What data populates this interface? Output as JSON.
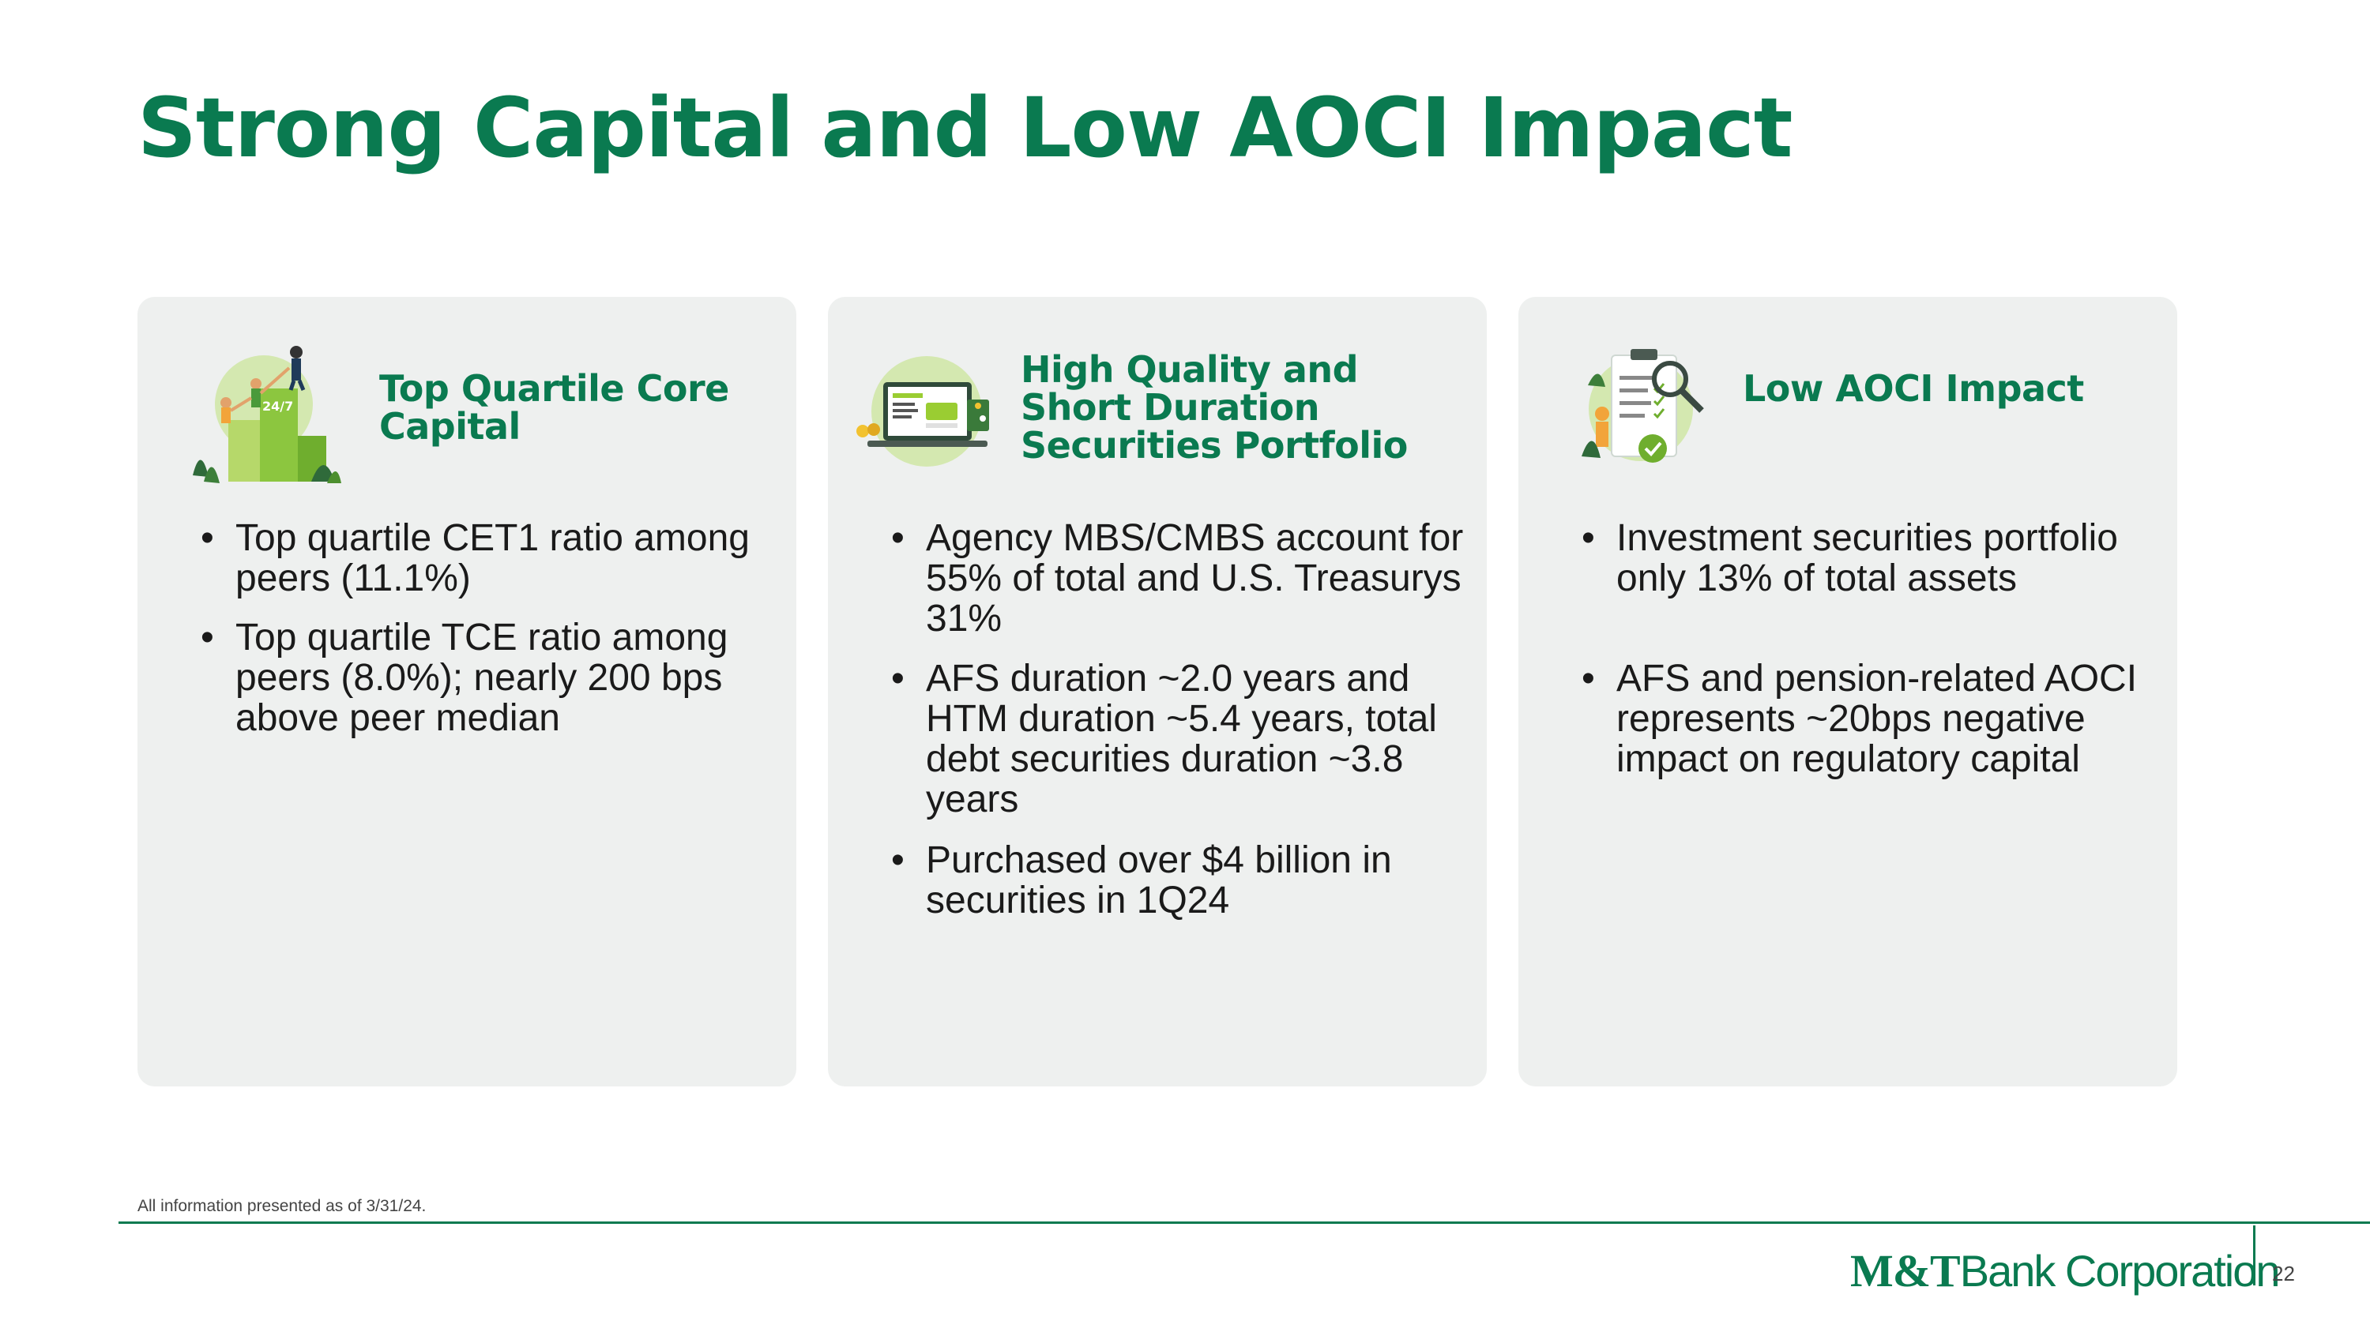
{
  "title": "Strong Capital and Low AOCI Impact",
  "cards": [
    {
      "icon": "capital-team-icon",
      "heading": "Top Quartile Core Capital",
      "bullets": [
        "Top quartile CET1 ratio among peers (11.1%)",
        "Top quartile TCE ratio among peers (8.0%); nearly 200 bps above peer median"
      ]
    },
    {
      "icon": "securities-portfolio-icon",
      "heading": "High Quality and Short Duration Securities Portfolio",
      "bullets": [
        "Agency MBS/CMBS account for 55% of total and U.S. Treasurys 31%",
        "AFS duration ~2.0 years and HTM duration ~5.4 years, total debt securities duration ~3.8 years",
        "Purchased over $4 billion in securities in 1Q24"
      ]
    },
    {
      "icon": "checklist-magnifier-icon",
      "heading": "Low AOCI Impact",
      "bullets": [
        "Investment securities portfolio only 13% of total assets",
        "AFS and pension-related AOCI represents ~20bps negative impact on regulatory capital"
      ]
    }
  ],
  "icon_text": {
    "badge": "24/7"
  },
  "footnote": "All information presented as of 3/31/24.",
  "logo": {
    "mt": "M&T",
    "bank": "Bank",
    "corp": "Corporation"
  },
  "page_number": "22",
  "colors": {
    "brand_green": "#0a7a50",
    "card_bg": "#eef0ef",
    "accent_lime": "#9acd32"
  }
}
